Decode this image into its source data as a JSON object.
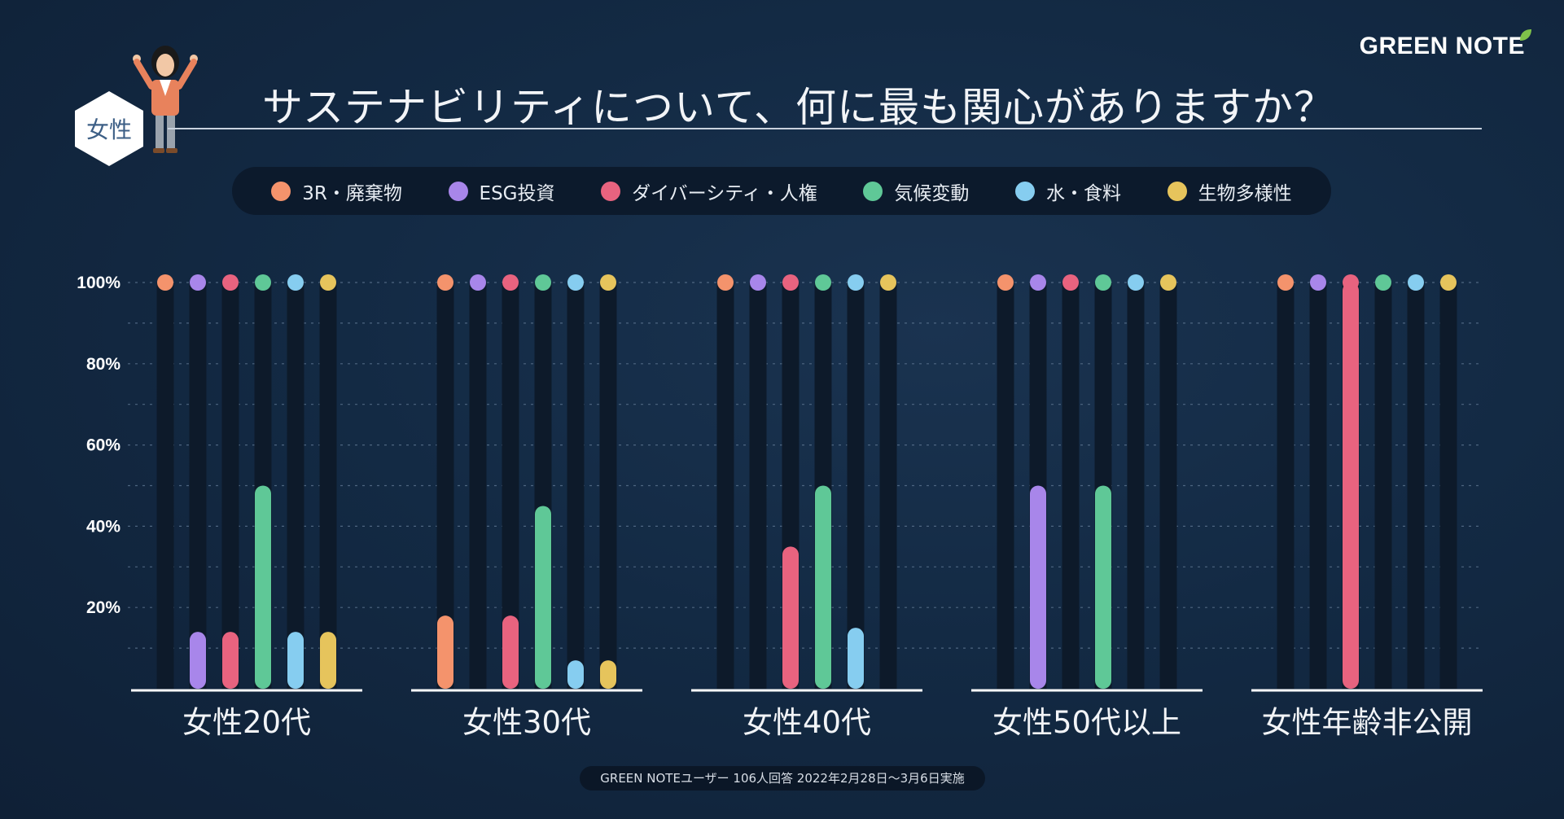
{
  "brand": {
    "name": "GREEN NOTE"
  },
  "header": {
    "title": "サステナビリティについて、何に最も関心がありますか？",
    "badge": "女性"
  },
  "colors": {
    "3r": "#f4936c",
    "esg": "#a886ea",
    "diversity": "#e8637f",
    "climate": "#5fc897",
    "water": "#86cdf0",
    "biodiversity": "#e6c45c",
    "track": "#0d1a2a",
    "baseline": "#ffffff"
  },
  "legend": [
    {
      "key": "3r",
      "label": "3R・廃棄物"
    },
    {
      "key": "esg",
      "label": "ESG投資"
    },
    {
      "key": "diversity",
      "label": "ダイバーシティ・人権"
    },
    {
      "key": "climate",
      "label": "気候変動"
    },
    {
      "key": "water",
      "label": "水・食料"
    },
    {
      "key": "biodiversity",
      "label": "生物多様性"
    }
  ],
  "chart_data": {
    "type": "bar",
    "title": "サステナビリティについて、何に最も関心がありますか？",
    "ylabel": "",
    "xlabel": "",
    "ylim": [
      0,
      100
    ],
    "yticks": [
      "100%",
      "80%",
      "60%",
      "40%",
      "20%"
    ],
    "categories": [
      "女性20代",
      "女性30代",
      "女性40代",
      "女性50代以上",
      "女性年齢非公開"
    ],
    "series": [
      {
        "key": "3r",
        "name": "3R・廃棄物",
        "values": [
          0,
          18,
          0,
          0,
          0
        ]
      },
      {
        "key": "esg",
        "name": "ESG投資",
        "values": [
          14,
          0,
          0,
          50,
          0
        ]
      },
      {
        "key": "diversity",
        "name": "ダイバーシティ・人権",
        "values": [
          14,
          18,
          35,
          0,
          100
        ]
      },
      {
        "key": "climate",
        "name": "気候変動",
        "values": [
          50,
          45,
          50,
          50,
          0
        ]
      },
      {
        "key": "water",
        "name": "水・食料",
        "values": [
          14,
          7,
          15,
          0,
          0
        ]
      },
      {
        "key": "biodiversity",
        "name": "生物多様性",
        "values": [
          14,
          7,
          0,
          0,
          0
        ]
      }
    ]
  },
  "footer": {
    "note": "GREEN NOTEユーザー 106人回答 2022年2月28日〜3月6日実施"
  }
}
